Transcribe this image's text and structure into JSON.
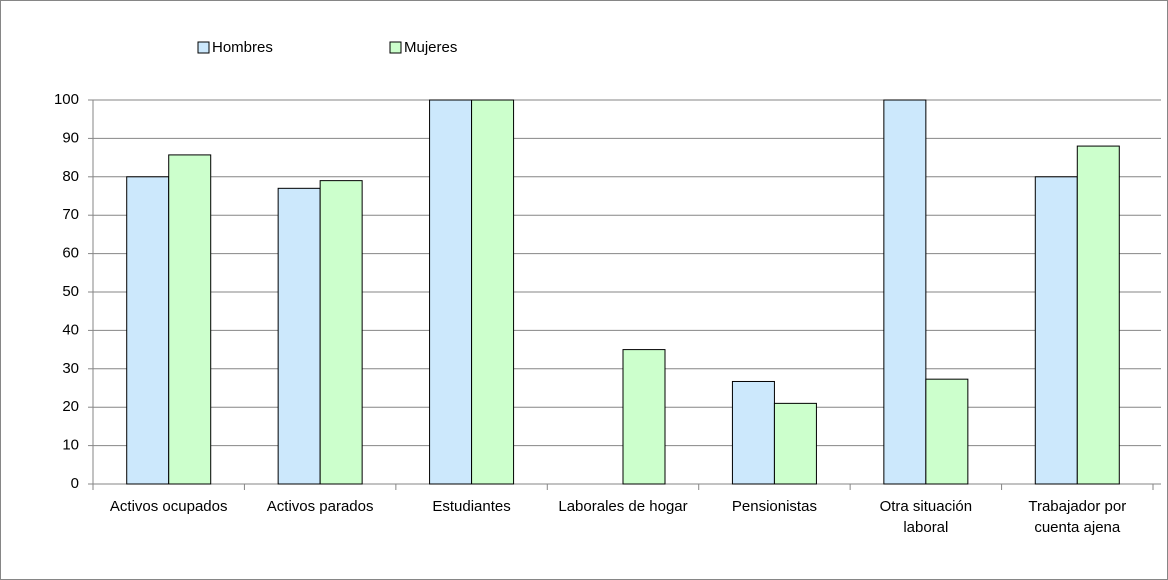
{
  "chart_data": {
    "type": "bar",
    "categories": [
      "Activos ocupados",
      "Activos parados",
      "Estudiantes",
      "Laborales de hogar",
      "Pensionistas",
      "Otra situación laboral",
      "Trabajador por cuenta ajena"
    ],
    "series": [
      {
        "name": "Hombres",
        "color": "#cce8fc",
        "values": [
          80,
          77,
          100,
          0,
          26.7,
          100,
          80
        ]
      },
      {
        "name": "Mujeres",
        "color": "#ccffcc",
        "values": [
          85.7,
          79,
          100,
          35,
          21,
          27.3,
          88
        ]
      }
    ],
    "ylim": [
      0,
      100
    ],
    "yticks": [
      0,
      10,
      20,
      30,
      40,
      50,
      60,
      70,
      80,
      90,
      100
    ],
    "grid": true,
    "legend": "top"
  }
}
